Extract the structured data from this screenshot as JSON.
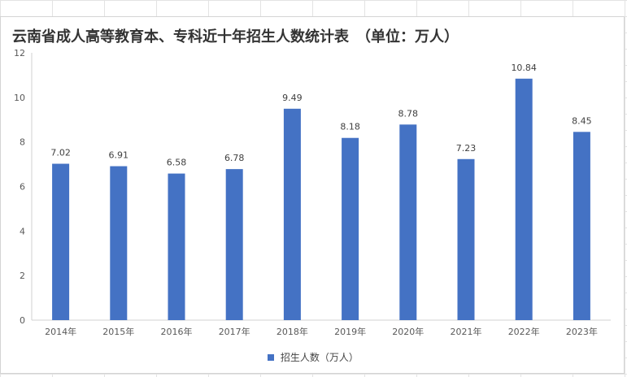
{
  "chart_data": {
    "type": "bar",
    "title": "云南省成人高等教育本、专科近十年招生人数统计表　（单位：万人）",
    "categories": [
      "2014年",
      "2015年",
      "2016年",
      "2017年",
      "2018年",
      "2019年",
      "2020年",
      "2021年",
      "2022年",
      "2023年"
    ],
    "series": [
      {
        "name": "招生人数（万人）",
        "color": "#4472c4",
        "values": [
          7.02,
          6.91,
          6.58,
          6.78,
          9.49,
          8.18,
          8.78,
          7.23,
          10.84,
          8.45
        ],
        "labels": [
          "7.02",
          "6.91",
          "6.58",
          "6.78",
          "9.49",
          "8.18",
          "8.78",
          "7.23",
          "10.84",
          "8.45"
        ]
      }
    ],
    "ylim": [
      0,
      12
    ],
    "yticks": [
      0,
      2,
      4,
      6,
      8,
      10,
      12
    ],
    "xlabel": "",
    "ylabel": "",
    "grid": false,
    "legend_position": "bottom"
  }
}
